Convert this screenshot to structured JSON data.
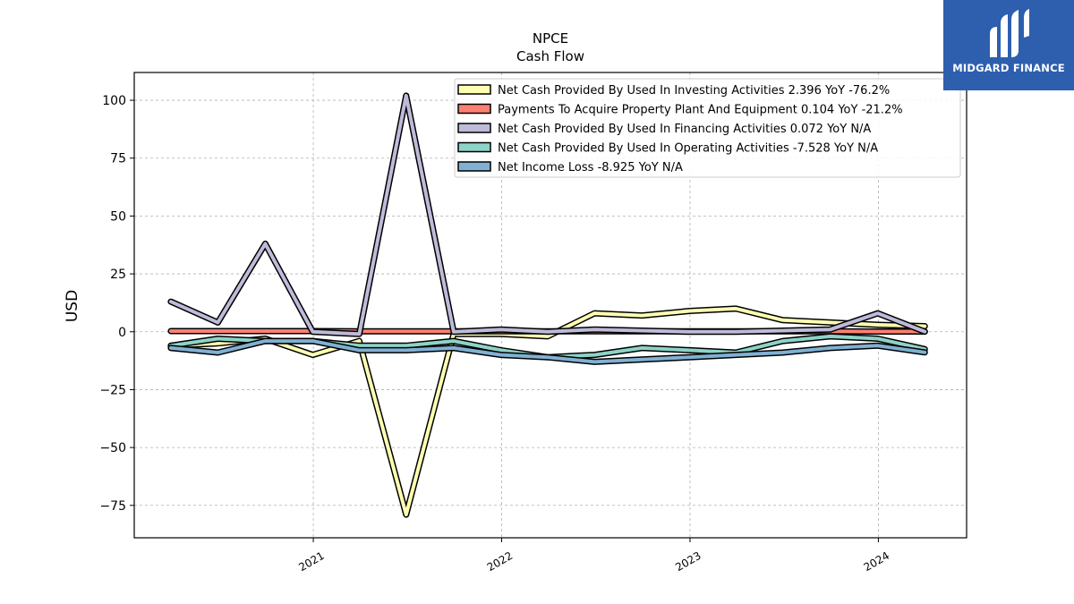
{
  "brand": {
    "name": "MIDGARD FINANCE",
    "color": "#2d5fae",
    "icon": "midgard-logo-icon"
  },
  "chart_data": {
    "type": "line",
    "title": "NPCE",
    "subtitle": "Cash Flow",
    "xlabel": "",
    "ylabel": "USD",
    "x_ticks": [
      "2021",
      "2022",
      "2023",
      "2024"
    ],
    "y_ticks": [
      100,
      75,
      50,
      25,
      0,
      -25,
      -50,
      -75
    ],
    "ylim": [
      -89,
      112
    ],
    "xlim": [
      "2020-01-20",
      "2024-06-20"
    ],
    "grid": true,
    "legend_position": "top-right",
    "x": [
      "2020-03-31",
      "2020-06-30",
      "2020-09-30",
      "2020-12-31",
      "2021-03-31",
      "2021-06-30",
      "2021-09-30",
      "2021-12-31",
      "2022-03-31",
      "2022-06-30",
      "2022-09-30",
      "2022-12-31",
      "2023-03-31",
      "2023-06-30",
      "2023-09-30",
      "2023-12-31",
      "2024-03-31"
    ],
    "series": [
      {
        "name": "Net Cash Provided By Used In Investing Activities",
        "legend_label": "Net Cash Provided By Used In Investing Activities  2.396 YoY -76.2%",
        "color": "#ffffb3",
        "values": [
          -6,
          -5,
          -3,
          -10,
          -4,
          -79,
          -1,
          -1,
          -2,
          8,
          7,
          9,
          10,
          5,
          4,
          3,
          2.4
        ]
      },
      {
        "name": "Payments To Acquire Property Plant And Equipment",
        "legend_label": "Payments To Acquire Property Plant And Equipment  0.104 YoY -21.2%",
        "color": "#fb8072",
        "values": [
          0.3,
          0.3,
          0.3,
          0.3,
          0.2,
          0.2,
          0.2,
          0.2,
          0.2,
          0.2,
          0.2,
          0.2,
          0.2,
          0.2,
          0.2,
          0.1,
          0.1
        ]
      },
      {
        "name": "Net Cash Provided By Used In Financing Activities",
        "legend_label": "Net Cash Provided By Used In Financing Activities  0.072 YoY N/A",
        "color": "#bebada",
        "values": [
          13,
          4,
          38,
          0,
          -1,
          102,
          0,
          1,
          0,
          1,
          0.5,
          0,
          0,
          0.5,
          1,
          8,
          0.07
        ]
      },
      {
        "name": "Net Cash Provided By Used In Operating Activities",
        "legend_label": "Net Cash Provided By Used In Operating Activities  -7.528 YoY N/A",
        "color": "#8dd3c7",
        "values": [
          -6,
          -3,
          -4,
          -4,
          -6,
          -6,
          -4,
          -8,
          -11,
          -10,
          -7,
          -8,
          -9,
          -4,
          -2,
          -3,
          -7.5
        ]
      },
      {
        "name": "Net Income Loss",
        "legend_label": "Net Income Loss  -8.925 YoY N/A",
        "color": "#80b1d3",
        "values": [
          -7,
          -9,
          -4,
          -4,
          -8,
          -8,
          -7,
          -10,
          -11,
          -13,
          -12,
          -11,
          -10,
          -9,
          -7,
          -6,
          -8.9
        ]
      }
    ]
  }
}
